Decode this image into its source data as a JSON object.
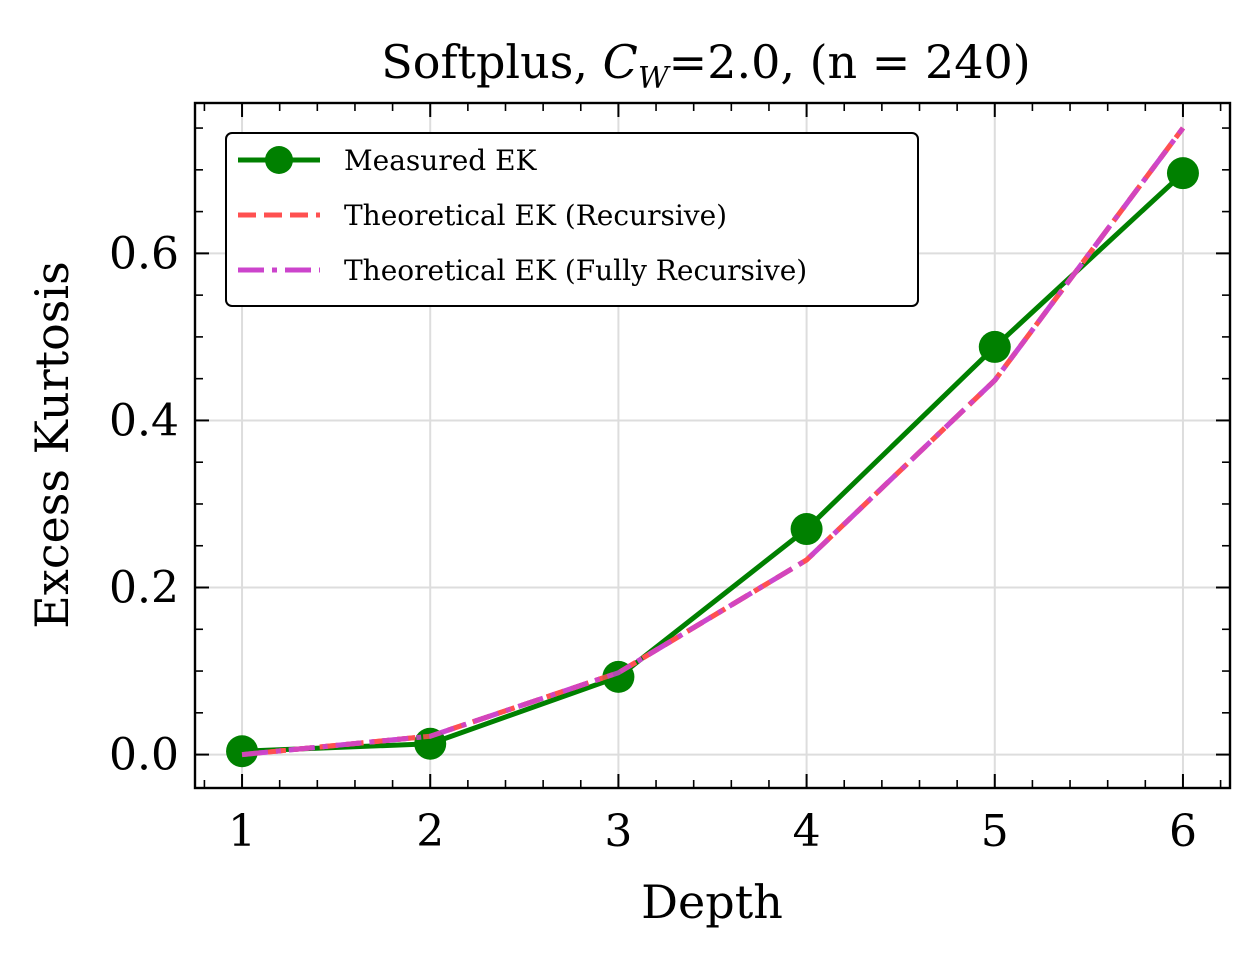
{
  "chart_data": {
    "type": "line",
    "title": "Softplus, C_W=2.0, (n = 240)",
    "title_parts": {
      "prefix": "Softplus, ",
      "symbol": "C",
      "subscript": "W",
      "suffix": "=2.0, (n = 240)"
    },
    "xlabel": "Depth",
    "ylabel": "Excess Kurtosis",
    "x": [
      1,
      2,
      3,
      4,
      5,
      6
    ],
    "xlim": [
      0.75,
      6.25
    ],
    "ylim": [
      -0.04,
      0.78
    ],
    "xticks": [
      1,
      2,
      3,
      4,
      5,
      6
    ],
    "xtick_labels": [
      "1",
      "2",
      "3",
      "4",
      "5",
      "6"
    ],
    "yticks": [
      0.0,
      0.2,
      0.4,
      0.6
    ],
    "ytick_labels": [
      "0.0",
      "0.2",
      "0.4",
      "0.6"
    ],
    "grid": true,
    "legend_position": "top-left",
    "series": [
      {
        "name": "Measured EK",
        "values": [
          0.004,
          0.013,
          0.093,
          0.27,
          0.488,
          0.696
        ],
        "color": "#008000",
        "style": "solid",
        "marker": "circle"
      },
      {
        "name": "Theoretical EK (Recursive)",
        "values": [
          0.0,
          0.022,
          0.098,
          0.233,
          0.448,
          0.75
        ],
        "color": "#ff5050",
        "style": "dashed",
        "marker": "none"
      },
      {
        "name": "Theoretical EK (Fully Recursive)",
        "values": [
          0.0,
          0.022,
          0.098,
          0.233,
          0.448,
          0.75
        ],
        "color": "#cc44cc",
        "style": "dashdot",
        "marker": "none"
      }
    ]
  }
}
